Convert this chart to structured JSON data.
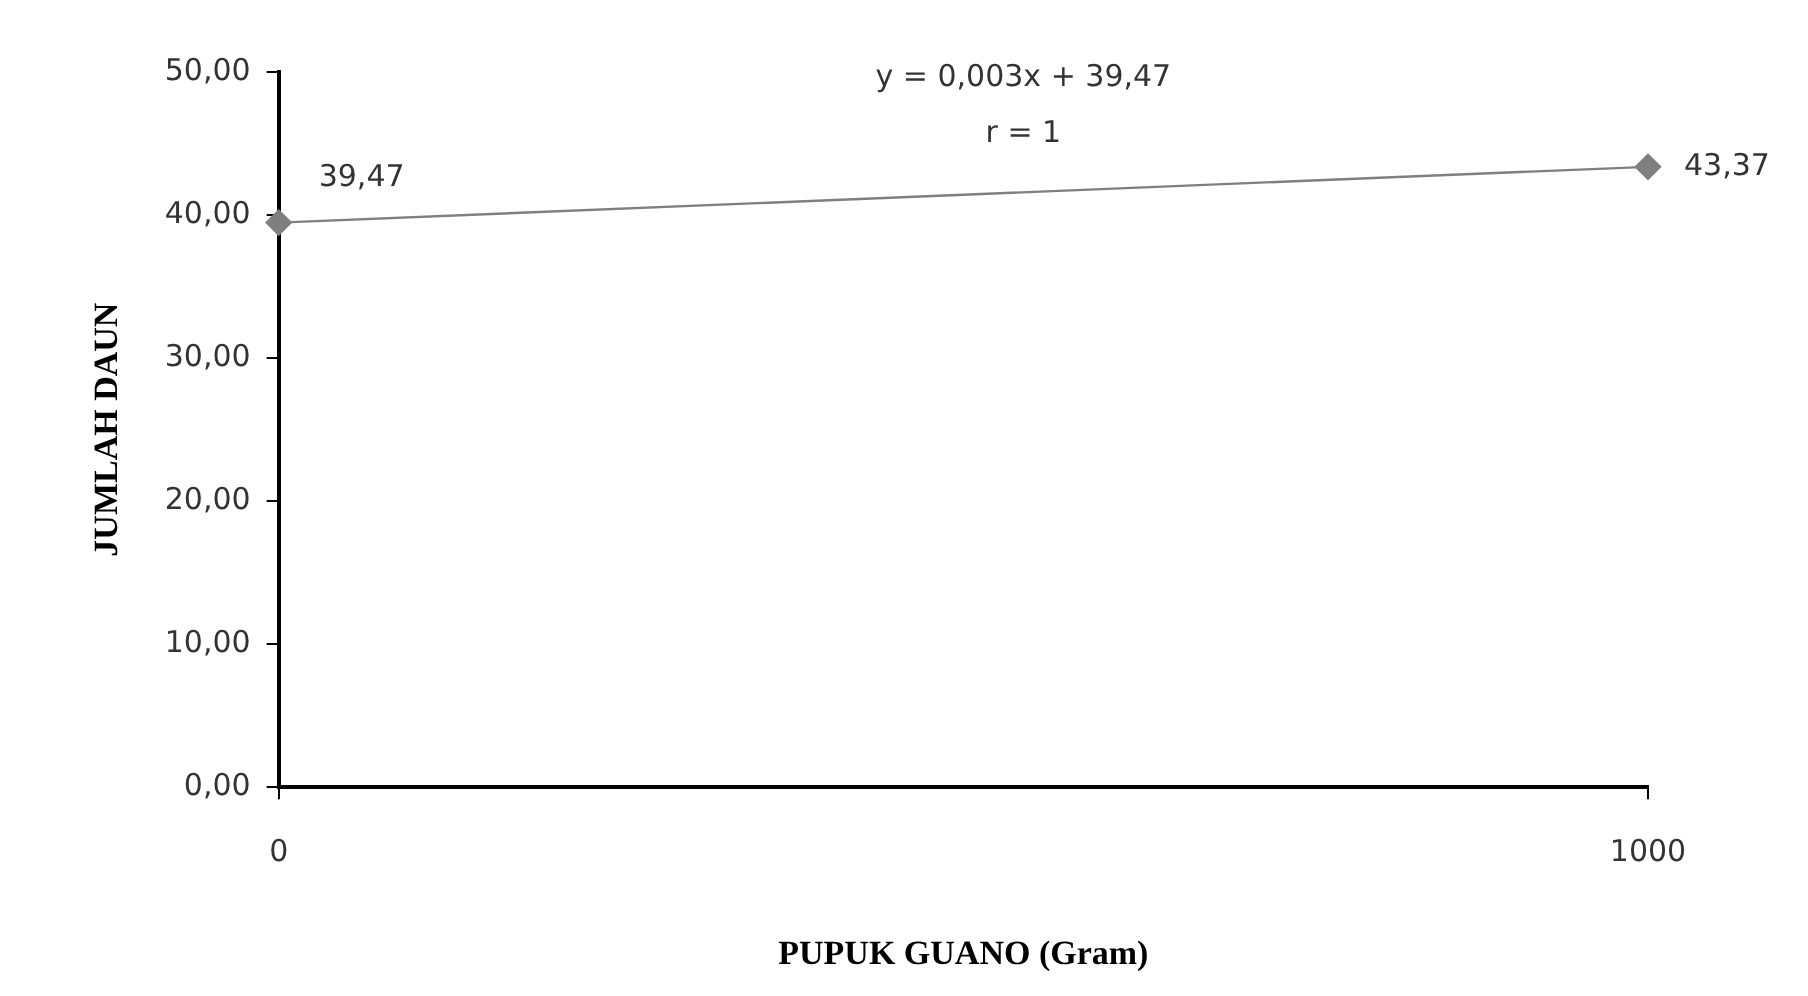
{
  "chart_data": {
    "type": "line",
    "xlabel": "PUPUK GUANO (Gram)",
    "ylabel": "JUMLAH DAUN",
    "categories": [
      "0",
      "1000"
    ],
    "series": [
      {
        "color": "#7f7f7f",
        "values": [
          39.47,
          43.37
        ],
        "value_labels": [
          "39,47",
          "43,37"
        ]
      }
    ],
    "marker": "diamond",
    "ylim": [
      0,
      50
    ],
    "yticks": [
      {
        "value": 0,
        "label": "0,00"
      },
      {
        "value": 10,
        "label": "10,00"
      },
      {
        "value": 20,
        "label": "20,00"
      },
      {
        "value": 30,
        "label": "30,00"
      },
      {
        "value": 40,
        "label": "40,00"
      },
      {
        "value": 50,
        "label": "50,00"
      }
    ],
    "annotations": [
      "y = 0,003x + 39,47",
      "r = 1"
    ]
  }
}
